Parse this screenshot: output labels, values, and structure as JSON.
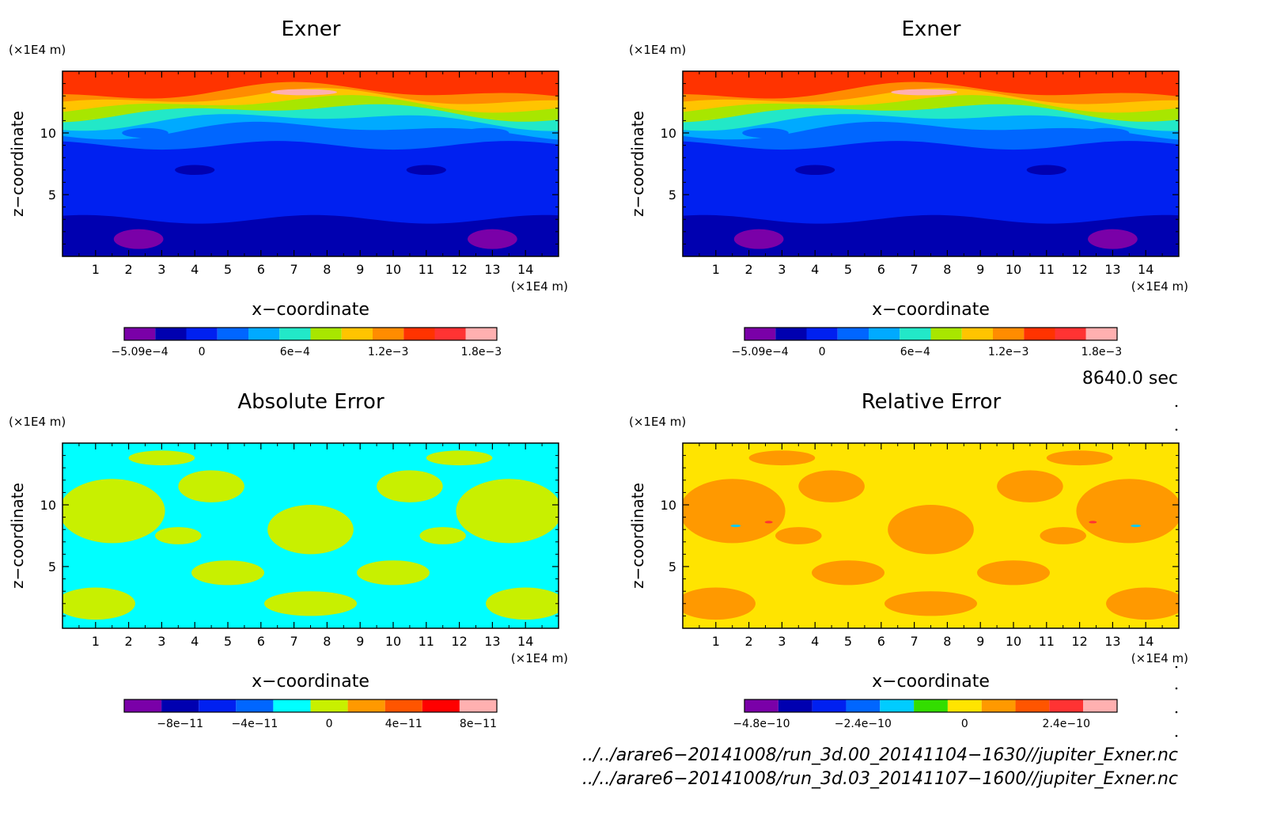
{
  "chart_data": [
    {
      "type": "contour",
      "title": "Exner",
      "xlabel": "x−coordinate",
      "ylabel": "z−coordinate",
      "x_unit": "(×1E4 m)",
      "y_unit": "(×1E4 m)",
      "xlim": [
        0,
        15
      ],
      "ylim": [
        0,
        15
      ],
      "x_ticks": [
        "1",
        "2",
        "3",
        "4",
        "5",
        "6",
        "7",
        "8",
        "9",
        "10",
        "11",
        "12",
        "13",
        "14"
      ],
      "y_ticks": [
        "5",
        "10"
      ],
      "colorbar": {
        "colors": [
          "#7a00a8",
          "#0000b0",
          "#0020f0",
          "#0066ff",
          "#00aaff",
          "#22e8c8",
          "#a8e600",
          "#ffc400",
          "#ff8c00",
          "#ff3300",
          "#ff3333",
          "#ffb0b0"
        ],
        "labels": [
          "−5.09e−4",
          "0",
          "6e−4",
          "1.2e−3",
          "1.8e−3"
        ],
        "label_slots": [
          0,
          2,
          5,
          8,
          11
        ]
      },
      "bands": [
        {
          "z": 0.0,
          "color": "#0000b0"
        },
        {
          "z": 3.0,
          "color": "#0020f0"
        },
        {
          "z": 9.0,
          "color": "#0066ff"
        },
        {
          "z": 10.2,
          "color": "#00aaff"
        },
        {
          "z": 11.0,
          "color": "#22e8c8"
        },
        {
          "z": 11.7,
          "color": "#a8e600"
        },
        {
          "z": 12.3,
          "color": "#ffc400"
        },
        {
          "z": 12.8,
          "color": "#ff8c00"
        },
        {
          "z": 13.3,
          "color": "#ff3300"
        }
      ],
      "blobs": [
        {
          "x": 2.3,
          "z": 1.4,
          "rx": 0.75,
          "rz": 0.8,
          "color": "#7a00a8"
        },
        {
          "x": 13.0,
          "z": 1.4,
          "rx": 0.75,
          "rz": 0.8,
          "color": "#7a00a8"
        },
        {
          "x": 7.3,
          "z": 13.3,
          "rx": 1.0,
          "rz": 0.25,
          "color": "#ffb0b0"
        },
        {
          "x": 4.0,
          "z": 7.0,
          "rx": 0.6,
          "rz": 0.4,
          "color": "#0000b0"
        },
        {
          "x": 11.0,
          "z": 7.0,
          "rx": 0.6,
          "rz": 0.4,
          "color": "#0000b0"
        },
        {
          "x": 2.5,
          "z": 10.0,
          "rx": 0.7,
          "rz": 0.4,
          "color": "#0066ff"
        },
        {
          "x": 12.8,
          "z": 10.0,
          "rx": 0.7,
          "rz": 0.4,
          "color": "#0066ff"
        }
      ]
    },
    {
      "type": "contour",
      "title": "Exner",
      "xlabel": "x−coordinate",
      "ylabel": "z−coordinate",
      "x_unit": "(×1E4 m)",
      "y_unit": "(×1E4 m)",
      "xlim": [
        0,
        15
      ],
      "ylim": [
        0,
        15
      ],
      "x_ticks": [
        "1",
        "2",
        "3",
        "4",
        "5",
        "6",
        "7",
        "8",
        "9",
        "10",
        "11",
        "12",
        "13",
        "14"
      ],
      "y_ticks": [
        "5",
        "10"
      ],
      "colorbar": {
        "colors": [
          "#7a00a8",
          "#0000b0",
          "#0020f0",
          "#0066ff",
          "#00aaff",
          "#22e8c8",
          "#a8e600",
          "#ffc400",
          "#ff8c00",
          "#ff3300",
          "#ff3333",
          "#ffb0b0"
        ],
        "labels": [
          "−5.09e−4",
          "0",
          "6e−4",
          "1.2e−3",
          "1.8e−3"
        ],
        "label_slots": [
          0,
          2,
          5,
          8,
          11
        ]
      },
      "bands": [
        {
          "z": 0.0,
          "color": "#0000b0"
        },
        {
          "z": 3.0,
          "color": "#0020f0"
        },
        {
          "z": 9.0,
          "color": "#0066ff"
        },
        {
          "z": 10.2,
          "color": "#00aaff"
        },
        {
          "z": 11.0,
          "color": "#22e8c8"
        },
        {
          "z": 11.7,
          "color": "#a8e600"
        },
        {
          "z": 12.3,
          "color": "#ffc400"
        },
        {
          "z": 12.8,
          "color": "#ff8c00"
        },
        {
          "z": 13.3,
          "color": "#ff3300"
        }
      ],
      "blobs": [
        {
          "x": 2.3,
          "z": 1.4,
          "rx": 0.75,
          "rz": 0.8,
          "color": "#7a00a8"
        },
        {
          "x": 13.0,
          "z": 1.4,
          "rx": 0.75,
          "rz": 0.8,
          "color": "#7a00a8"
        },
        {
          "x": 7.3,
          "z": 13.3,
          "rx": 1.0,
          "rz": 0.25,
          "color": "#ffb0b0"
        },
        {
          "x": 4.0,
          "z": 7.0,
          "rx": 0.6,
          "rz": 0.4,
          "color": "#0000b0"
        },
        {
          "x": 11.0,
          "z": 7.0,
          "rx": 0.6,
          "rz": 0.4,
          "color": "#0000b0"
        },
        {
          "x": 2.5,
          "z": 10.0,
          "rx": 0.7,
          "rz": 0.4,
          "color": "#0066ff"
        },
        {
          "x": 12.8,
          "z": 10.0,
          "rx": 0.7,
          "rz": 0.4,
          "color": "#0066ff"
        }
      ]
    },
    {
      "type": "contour",
      "title": "Absolute Error",
      "xlabel": "x−coordinate",
      "ylabel": "z−coordinate",
      "x_unit": "(×1E4 m)",
      "y_unit": "(×1E4 m)",
      "xlim": [
        0,
        15
      ],
      "ylim": [
        0,
        15
      ],
      "x_ticks": [
        "1",
        "2",
        "3",
        "4",
        "5",
        "6",
        "7",
        "8",
        "9",
        "10",
        "11",
        "12",
        "13",
        "14"
      ],
      "y_ticks": [
        "5",
        "10"
      ],
      "colorbar": {
        "colors": [
          "#7a00a8",
          "#0000b0",
          "#0020f0",
          "#0066ff",
          "#00ffff",
          "#c8f000",
          "#ff9900",
          "#ff5500",
          "#ff0000",
          "#ffb0b0"
        ],
        "labels": [
          "−8e−11",
          "−4e−11",
          "0",
          "4e−11",
          "8e−11"
        ],
        "label_slots": [
          1,
          3,
          5,
          7,
          9
        ]
      },
      "background": "#00ffff",
      "bands": [],
      "blobs": [
        {
          "x": 1.0,
          "z": 2.0,
          "rx": 1.2,
          "rz": 1.3,
          "color": "#c8f000"
        },
        {
          "x": 14.0,
          "z": 2.0,
          "rx": 1.2,
          "rz": 1.3,
          "color": "#c8f000"
        },
        {
          "x": 1.5,
          "z": 9.5,
          "rx": 1.6,
          "rz": 2.6,
          "color": "#c8f000"
        },
        {
          "x": 13.5,
          "z": 9.5,
          "rx": 1.6,
          "rz": 2.6,
          "color": "#c8f000"
        },
        {
          "x": 7.5,
          "z": 8.0,
          "rx": 1.3,
          "rz": 2.0,
          "color": "#c8f000"
        },
        {
          "x": 4.5,
          "z": 11.5,
          "rx": 1.0,
          "rz": 1.3,
          "color": "#c8f000"
        },
        {
          "x": 10.5,
          "z": 11.5,
          "rx": 1.0,
          "rz": 1.3,
          "color": "#c8f000"
        },
        {
          "x": 5.0,
          "z": 4.5,
          "rx": 1.1,
          "rz": 1.0,
          "color": "#c8f000"
        },
        {
          "x": 10.0,
          "z": 4.5,
          "rx": 1.1,
          "rz": 1.0,
          "color": "#c8f000"
        },
        {
          "x": 3.0,
          "z": 13.8,
          "rx": 1.0,
          "rz": 0.6,
          "color": "#c8f000"
        },
        {
          "x": 12.0,
          "z": 13.8,
          "rx": 1.0,
          "rz": 0.6,
          "color": "#c8f000"
        },
        {
          "x": 7.5,
          "z": 2.0,
          "rx": 1.4,
          "rz": 1.0,
          "color": "#c8f000"
        },
        {
          "x": 3.5,
          "z": 7.5,
          "rx": 0.7,
          "rz": 0.7,
          "color": "#c8f000"
        },
        {
          "x": 11.5,
          "z": 7.5,
          "rx": 0.7,
          "rz": 0.7,
          "color": "#c8f000"
        }
      ]
    },
    {
      "type": "contour",
      "title": "Relative Error",
      "xlabel": "x−coordinate",
      "ylabel": "z−coordinate",
      "x_unit": "(×1E4 m)",
      "y_unit": "(×1E4 m)",
      "xlim": [
        0,
        15
      ],
      "ylim": [
        0,
        15
      ],
      "x_ticks": [
        "1",
        "2",
        "3",
        "4",
        "5",
        "6",
        "7",
        "8",
        "9",
        "10",
        "11",
        "12",
        "13",
        "14"
      ],
      "y_ticks": [
        "5",
        "10"
      ],
      "colorbar": {
        "colors": [
          "#7a00a8",
          "#0000b0",
          "#0020f0",
          "#0066ff",
          "#00ccff",
          "#33dd00",
          "#ffe400",
          "#ff9900",
          "#ff5500",
          "#ff3333",
          "#ffb0b0"
        ],
        "labels": [
          "−4.8e−10",
          "−2.4e−10",
          "0",
          "2.4e−10"
        ],
        "label_slots": [
          0,
          3,
          6,
          9
        ]
      },
      "background": "#ffe400",
      "bands": [],
      "blobs": [
        {
          "x": 1.0,
          "z": 2.0,
          "rx": 1.2,
          "rz": 1.3,
          "color": "#ff9900"
        },
        {
          "x": 14.0,
          "z": 2.0,
          "rx": 1.2,
          "rz": 1.3,
          "color": "#ff9900"
        },
        {
          "x": 1.5,
          "z": 9.5,
          "rx": 1.6,
          "rz": 2.6,
          "color": "#ff9900"
        },
        {
          "x": 13.5,
          "z": 9.5,
          "rx": 1.6,
          "rz": 2.6,
          "color": "#ff9900"
        },
        {
          "x": 7.5,
          "z": 8.0,
          "rx": 1.3,
          "rz": 2.0,
          "color": "#ff9900"
        },
        {
          "x": 4.5,
          "z": 11.5,
          "rx": 1.0,
          "rz": 1.3,
          "color": "#ff9900"
        },
        {
          "x": 10.5,
          "z": 11.5,
          "rx": 1.0,
          "rz": 1.3,
          "color": "#ff9900"
        },
        {
          "x": 5.0,
          "z": 4.5,
          "rx": 1.1,
          "rz": 1.0,
          "color": "#ff9900"
        },
        {
          "x": 10.0,
          "z": 4.5,
          "rx": 1.1,
          "rz": 1.0,
          "color": "#ff9900"
        },
        {
          "x": 3.0,
          "z": 13.8,
          "rx": 1.0,
          "rz": 0.6,
          "color": "#ff9900"
        },
        {
          "x": 12.0,
          "z": 13.8,
          "rx": 1.0,
          "rz": 0.6,
          "color": "#ff9900"
        },
        {
          "x": 7.5,
          "z": 2.0,
          "rx": 1.4,
          "rz": 1.0,
          "color": "#ff9900"
        },
        {
          "x": 3.5,
          "z": 7.5,
          "rx": 0.7,
          "rz": 0.7,
          "color": "#ff9900"
        },
        {
          "x": 11.5,
          "z": 7.5,
          "rx": 0.7,
          "rz": 0.7,
          "color": "#ff9900"
        },
        {
          "x": 1.6,
          "z": 8.3,
          "rx": 0.15,
          "rz": 0.1,
          "color": "#00ccff"
        },
        {
          "x": 13.7,
          "z": 8.3,
          "rx": 0.15,
          "rz": 0.1,
          "color": "#00ccff"
        },
        {
          "x": 2.6,
          "z": 8.6,
          "rx": 0.12,
          "rz": 0.1,
          "color": "#ff3333"
        },
        {
          "x": 12.4,
          "z": 8.6,
          "rx": 0.12,
          "rz": 0.1,
          "color": "#ff3333"
        }
      ]
    }
  ],
  "time_label": "8640.0 sec",
  "footer": {
    "line1": "../../arare6−20141008/run_3d.00_20141104−1630//jupiter_Exner.nc",
    "line2": "../../arare6−20141008/run_3d.03_20141107−1600//jupiter_Exner.nc"
  }
}
